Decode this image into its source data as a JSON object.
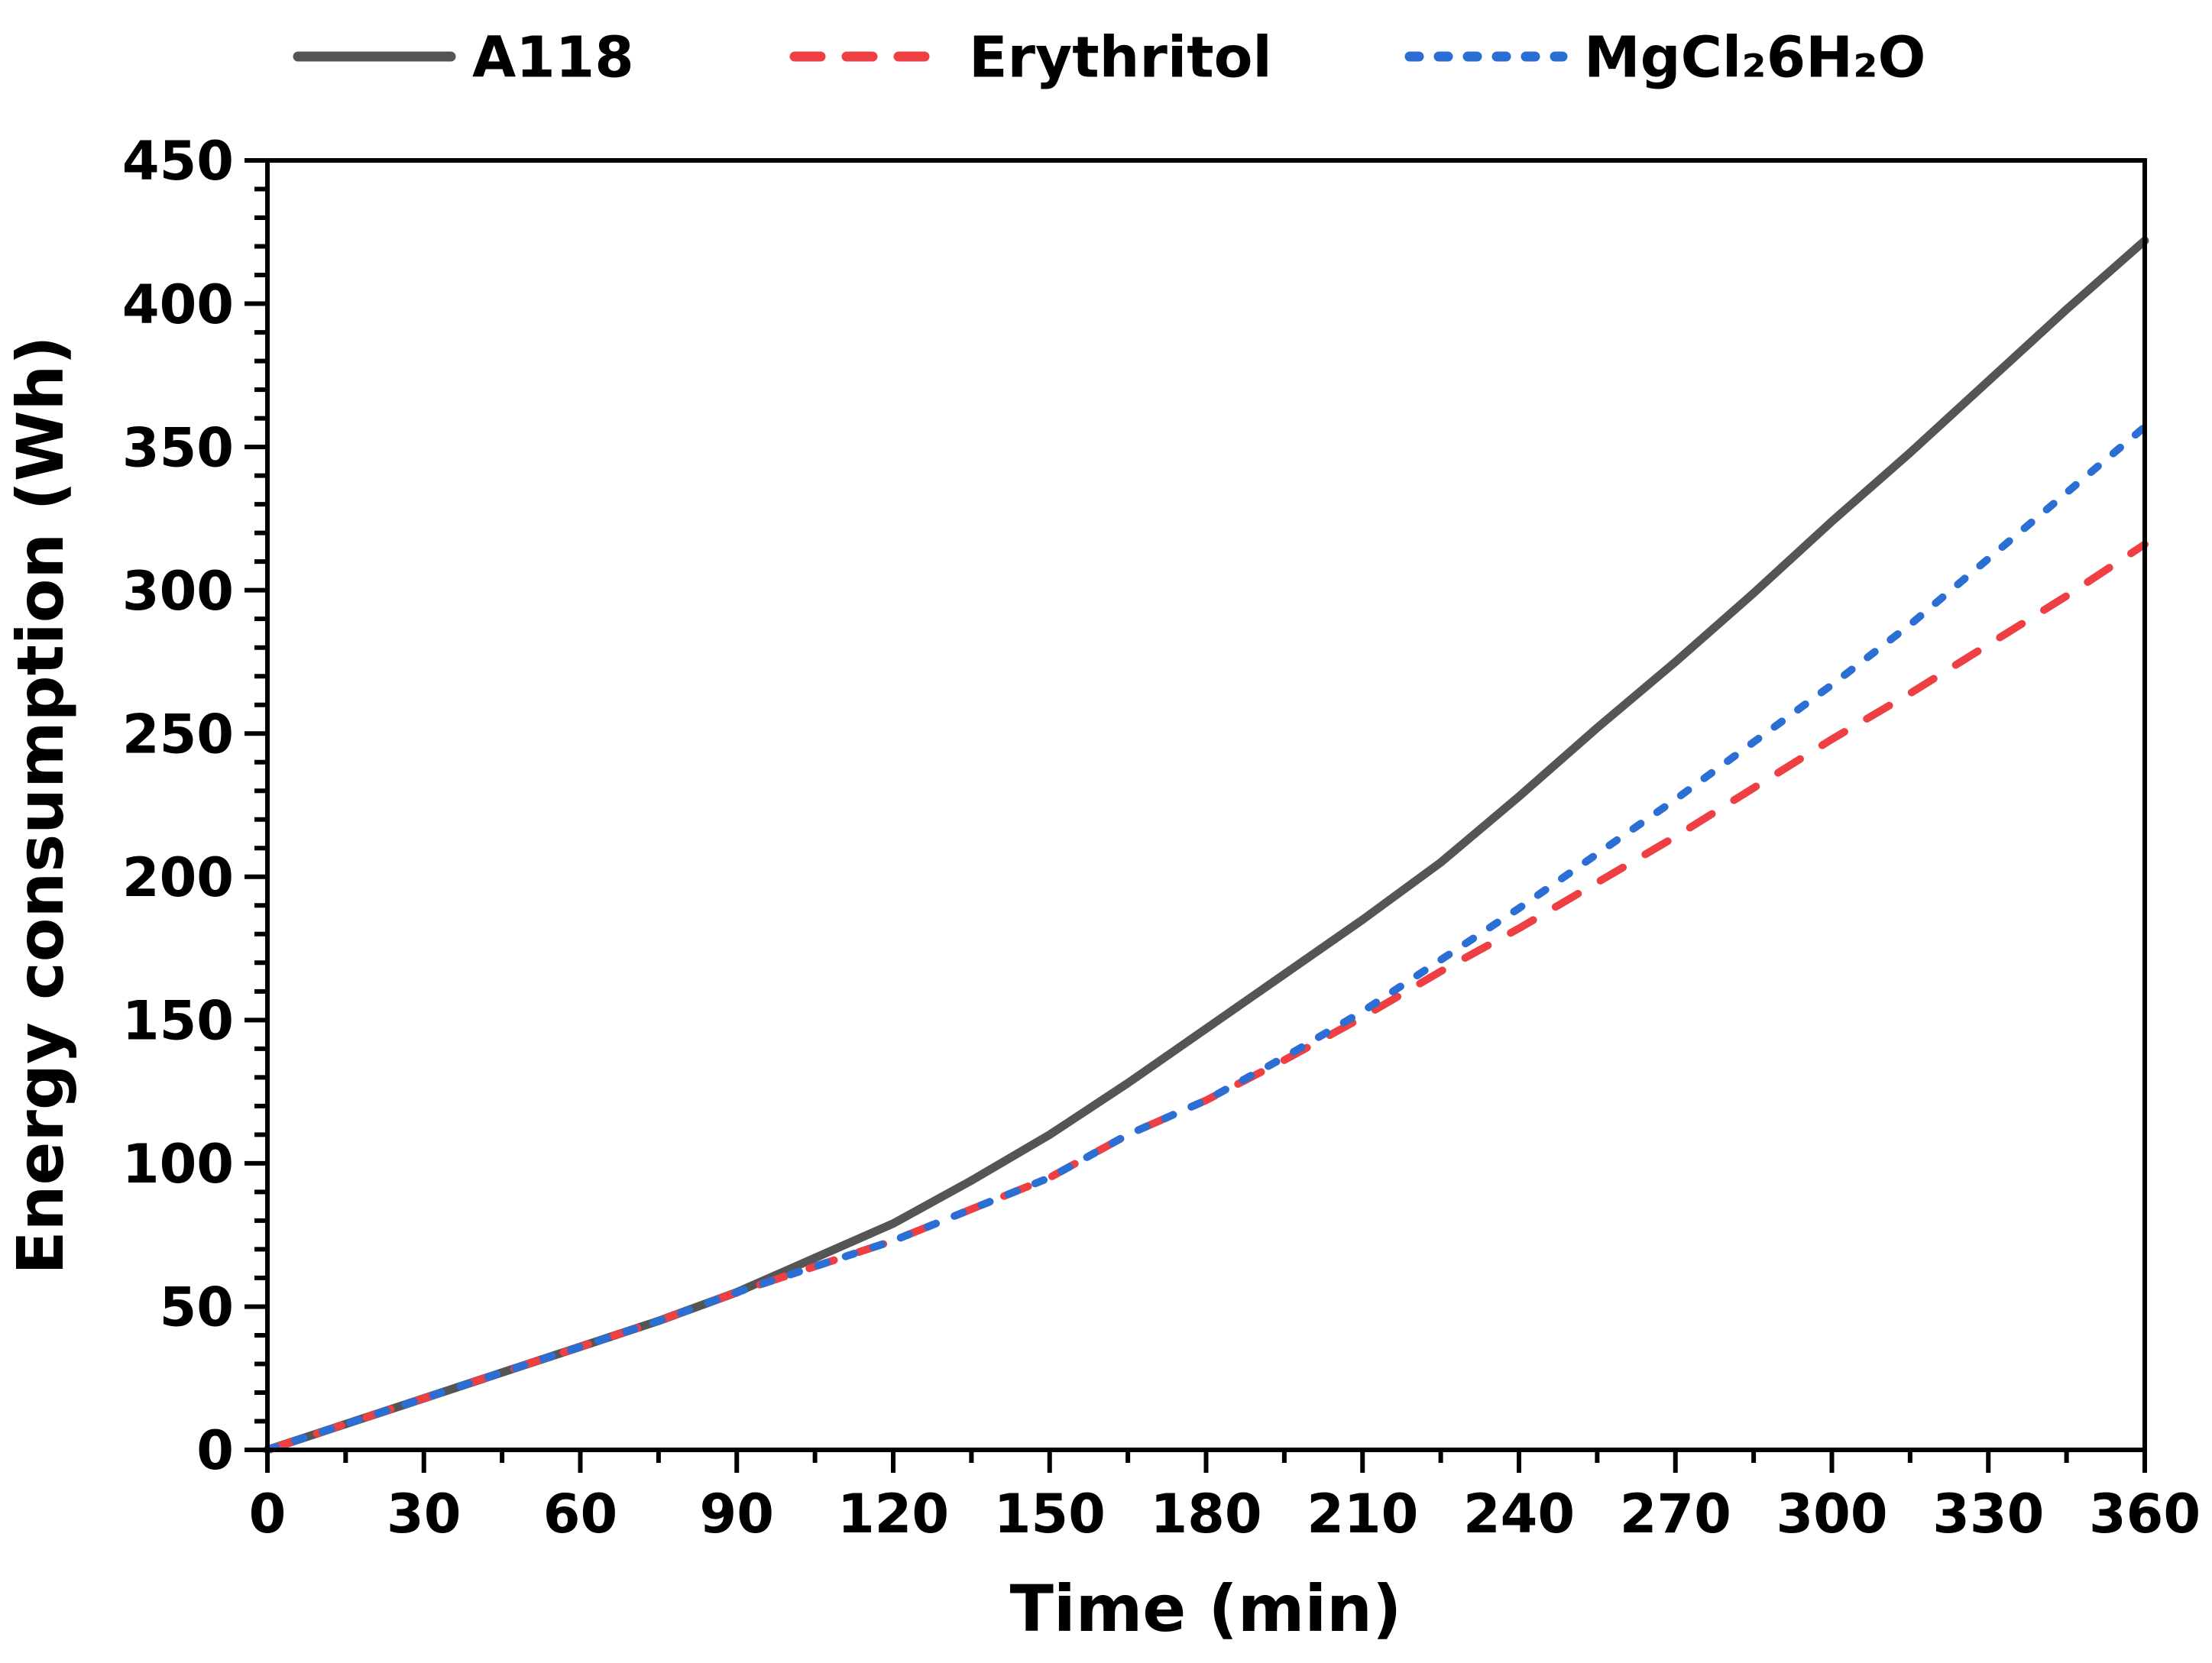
{
  "figure": {
    "background": "#ffffff"
  },
  "legend": {
    "position": "top",
    "items": [
      {
        "label": "A118",
        "color": "#555555",
        "style": "solid"
      },
      {
        "label": "Erythritol",
        "color": "#ee3f43",
        "style": "long-dash"
      },
      {
        "label": "MgCl₂6H₂O",
        "color": "#2b6ed4",
        "style": "short-dash"
      }
    ]
  },
  "chart_data": {
    "type": "line",
    "title": "",
    "xlabel": "Time (min)",
    "ylabel": "Energy consumption (Wh)",
    "xlim": [
      0,
      360
    ],
    "ylim": [
      0,
      450
    ],
    "xticks": [
      0,
      30,
      60,
      90,
      120,
      150,
      180,
      210,
      240,
      270,
      300,
      330,
      360
    ],
    "yticks": [
      0,
      50,
      100,
      150,
      200,
      250,
      300,
      350,
      400,
      450
    ],
    "x_minor_step": 15,
    "y_minor_step": 10,
    "grid": false,
    "frame": true,
    "x": [
      0,
      15,
      30,
      45,
      60,
      75,
      90,
      105,
      120,
      135,
      150,
      165,
      180,
      195,
      210,
      225,
      240,
      255,
      270,
      285,
      300,
      315,
      330,
      345,
      360
    ],
    "series": [
      {
        "name": "A118",
        "color": "#555555",
        "style": "solid",
        "line_width": 11,
        "values": [
          0,
          9,
          18,
          27,
          36,
          45,
          55,
          67,
          79,
          94,
          110,
          128,
          147,
          166,
          185,
          205,
          228,
          252,
          275,
          299,
          324,
          348,
          373,
          398,
          422
        ]
      },
      {
        "name": "Erythritol",
        "color": "#ee3f43",
        "style": "long-dash",
        "line_width": 10,
        "values": [
          0,
          9,
          18,
          27,
          36,
          45,
          55,
          64,
          73,
          84,
          95,
          110,
          122,
          136,
          151,
          167,
          182,
          198,
          214,
          231,
          248,
          264,
          281,
          298,
          316
        ]
      },
      {
        "name": "MgCl₂6H₂O",
        "color": "#2b6ed4",
        "style": "short-dash",
        "line_width": 10,
        "values": [
          0,
          9,
          18,
          27,
          36,
          45,
          55,
          64,
          73,
          84,
          95,
          110,
          122,
          137,
          153,
          171,
          189,
          208,
          227,
          247,
          267,
          288,
          311,
          334,
          357
        ]
      }
    ]
  }
}
